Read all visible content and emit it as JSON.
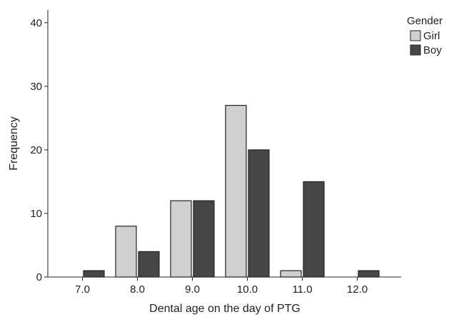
{
  "chart_data": {
    "type": "bar",
    "xlabel": "Dental age on the day of PTG",
    "ylabel": "Frequency",
    "categories": [
      "7.0",
      "8.0",
      "9.0",
      "10.0",
      "11.0",
      "12.0"
    ],
    "ylim": [
      0,
      42
    ],
    "yticks": [
      0,
      10,
      20,
      30,
      40
    ],
    "grid": false,
    "legend": {
      "title": "Gender",
      "placement": "top-right"
    },
    "series": [
      {
        "name": "Girl",
        "color": "#d0d0d0",
        "values": [
          0,
          8,
          12,
          27,
          1,
          0
        ]
      },
      {
        "name": "Boy",
        "color": "#464646",
        "values": [
          1,
          4,
          12,
          20,
          15,
          1
        ]
      }
    ]
  }
}
